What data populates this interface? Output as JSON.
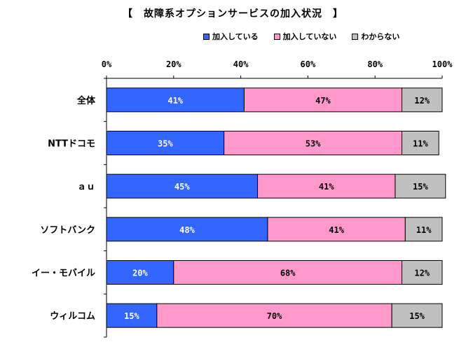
{
  "chart_data": {
    "type": "bar",
    "orientation": "horizontal",
    "stacked": true,
    "title": "【　故障系オプションサービスの加入状況　】",
    "x_ticks": [
      "0%",
      "20%",
      "40%",
      "60%",
      "80%",
      "100%"
    ],
    "xlim": [
      0,
      100
    ],
    "legend_position": "top-right",
    "categories": [
      "全体",
      "NTTドコモ",
      "ａｕ",
      "ソフトバンク",
      "イー・モバイル",
      "ウィルコム"
    ],
    "series": [
      {
        "name": "加入している",
        "color": "#3366ff",
        "label_color": "#ffffff",
        "values": [
          41,
          35,
          45,
          48,
          20,
          15
        ],
        "labels": [
          "41%",
          "35%",
          "45%",
          "48%",
          "20%",
          "15%"
        ]
      },
      {
        "name": "加入していない",
        "color": "#ff99cc",
        "label_color": "#000000",
        "values": [
          47,
          53,
          41,
          41,
          68,
          70
        ],
        "labels": [
          "47%",
          "53%",
          "41%",
          "41%",
          "68%",
          "70%"
        ]
      },
      {
        "name": "わからない",
        "color": "#c0c0c0",
        "label_color": "#000000",
        "values": [
          12,
          11,
          15,
          11,
          12,
          15
        ],
        "labels": [
          "12%",
          "11%",
          "15%",
          "11%",
          "12%",
          "15%"
        ]
      }
    ]
  }
}
